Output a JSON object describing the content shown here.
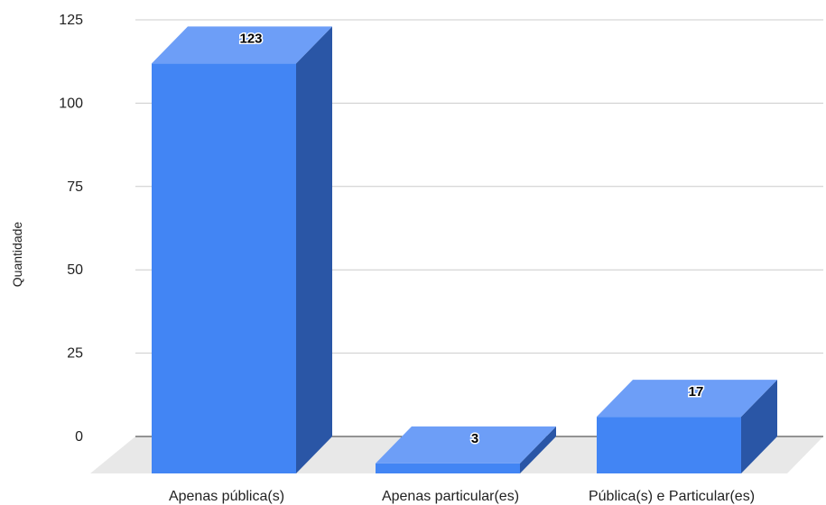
{
  "chart_data": {
    "type": "bar",
    "categories": [
      "Apenas pública(s)",
      "Apenas particular(es)",
      "Pública(s) e Particular(es)"
    ],
    "values": [
      123,
      3,
      17
    ],
    "data_labels": [
      "123",
      "3",
      "17"
    ],
    "title": "",
    "xlabel": "",
    "ylabel": "Quantidade",
    "ylim": [
      0,
      125
    ],
    "yticks": [
      0,
      25,
      50,
      75,
      100,
      125
    ],
    "ytick_labels": [
      "0",
      "25",
      "50",
      "75",
      "100",
      "125"
    ],
    "grid": true,
    "legend": "none",
    "style": "3d"
  },
  "colors": {
    "bar_front": "#4285f4",
    "bar_side": "#2a56a6",
    "bar_top": "#6d9ef7",
    "floor": "#e8e8e8",
    "gridline": "#cccccc",
    "baseline": "#333333"
  }
}
